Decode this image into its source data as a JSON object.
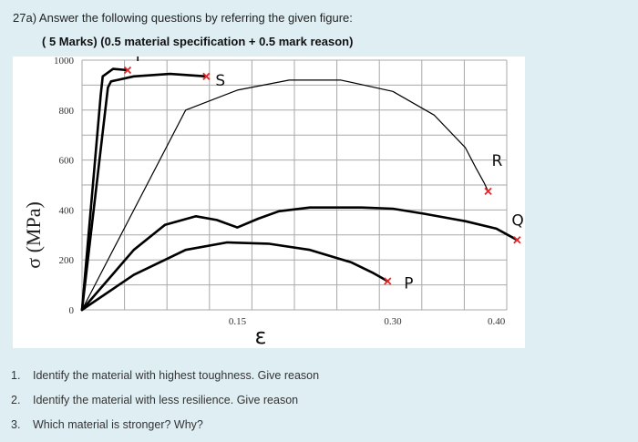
{
  "header": {
    "title": "27a) Answer the following questions by referring the given figure:",
    "subtitle": "( 5 Marks) (0.5 material specification  + 0.5 mark reason)"
  },
  "questions": [
    {
      "num": "1.",
      "text": "Identify the material with highest toughness. Give reason"
    },
    {
      "num": "2.",
      "text": "Identify the material with less resilience. Give reason"
    },
    {
      "num": "3.",
      "text": "Which material is stronger? Why?"
    }
  ],
  "colors": {
    "background": "#dfeef3",
    "plot_background": "#ffffff",
    "grid": "#a8a8a8",
    "curve": "#000000",
    "fracture_marker": "#e0282a"
  },
  "chart_data": {
    "type": "line",
    "title": "",
    "xlabel": "ε",
    "ylabel": "σ (MPa)",
    "xlim": [
      0,
      0.41
    ],
    "ylim": [
      0,
      1000
    ],
    "x_ticks": [
      {
        "value": 0.15,
        "label": "0.15"
      },
      {
        "value": 0.3,
        "label": "0.30"
      },
      {
        "value": 0.4,
        "label": "0.40"
      }
    ],
    "y_ticks": [
      {
        "value": 0,
        "label": "0"
      },
      {
        "value": 200,
        "label": "200"
      },
      {
        "value": 400,
        "label": "400"
      },
      {
        "value": 600,
        "label": "600"
      },
      {
        "value": 800,
        "label": "800"
      },
      {
        "value": 1000,
        "label": "1000"
      }
    ],
    "grid": true,
    "series": [
      {
        "name": "T",
        "x": [
          0,
          0.018,
          0.02,
          0.03,
          0.044
        ],
        "y": [
          0,
          860,
          935,
          965,
          960
        ]
      },
      {
        "name": "S",
        "x": [
          0,
          0.025,
          0.028,
          0.05,
          0.085,
          0.12
        ],
        "y": [
          0,
          890,
          915,
          935,
          945,
          935
        ]
      },
      {
        "name": "R",
        "x": [
          0,
          0.1,
          0.15,
          0.2,
          0.25,
          0.3,
          0.34,
          0.37,
          0.38,
          0.388,
          0.392
        ],
        "y": [
          0,
          800,
          880,
          920,
          920,
          875,
          780,
          650,
          570,
          510,
          475
        ]
      },
      {
        "name": "Q",
        "x": [
          0,
          0.05,
          0.08,
          0.11,
          0.13,
          0.15,
          0.17,
          0.19,
          0.22,
          0.27,
          0.3,
          0.33,
          0.37,
          0.4,
          0.42
        ],
        "y": [
          0,
          240,
          340,
          375,
          360,
          330,
          365,
          395,
          410,
          410,
          405,
          385,
          355,
          325,
          280
        ]
      },
      {
        "name": "P",
        "x": [
          0,
          0.05,
          0.1,
          0.14,
          0.18,
          0.22,
          0.26,
          0.28,
          0.295
        ],
        "y": [
          0,
          140,
          240,
          270,
          265,
          240,
          190,
          150,
          115
        ]
      }
    ],
    "fracture_points": [
      {
        "x": 0.044,
        "y": 960
      },
      {
        "x": 0.12,
        "y": 935
      },
      {
        "x": 0.392,
        "y": 475
      },
      {
        "x": 0.42,
        "y": 280
      },
      {
        "x": 0.295,
        "y": 115
      }
    ]
  }
}
